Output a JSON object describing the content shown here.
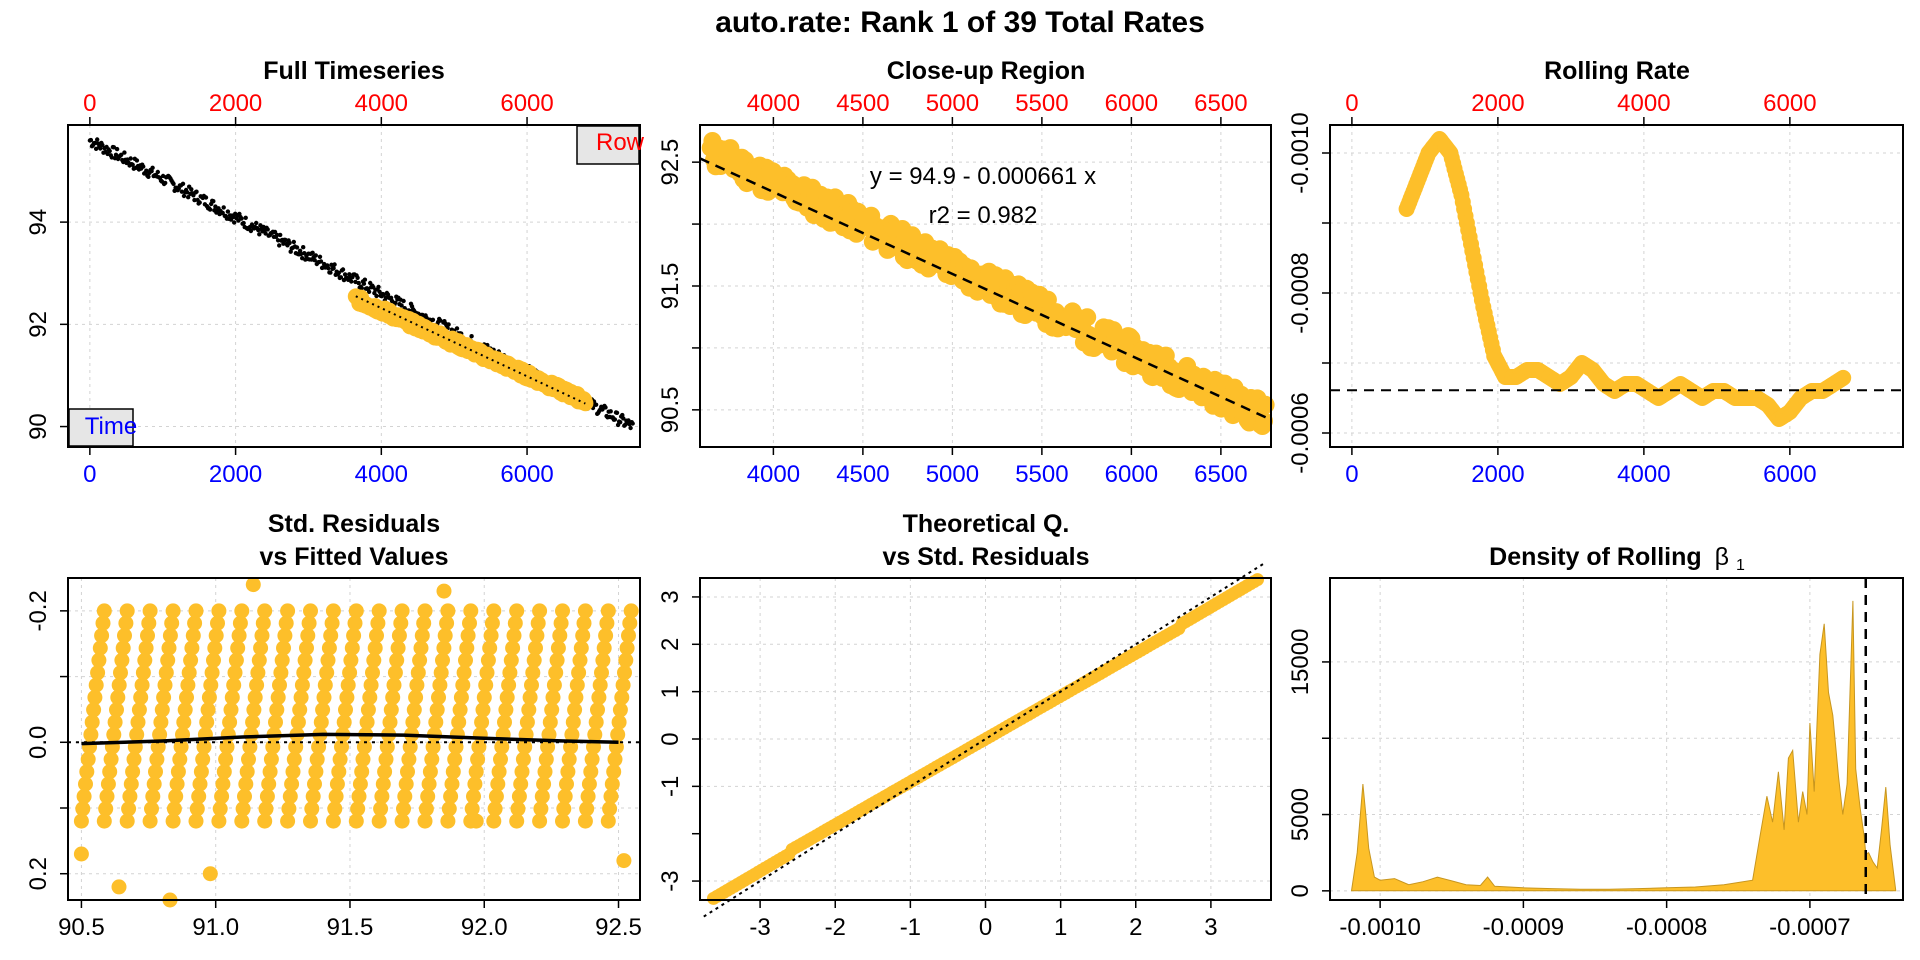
{
  "main_title": "auto.rate: Rank 1 of 39 Total Rates",
  "colors": {
    "data_point": "#FDBF2A",
    "full_series": "#000000",
    "time_axis": "#0000FF",
    "row_axis": "#FF0000",
    "legend_fill": "#E6E6E6",
    "grid": "#D3D3D3"
  },
  "panels": {
    "full": {
      "title": "Full Timeseries",
      "legend_row": "Row",
      "legend_time": "Time",
      "row_ticks": [
        "0",
        "2000",
        "4000",
        "6000"
      ],
      "time_ticks": [
        "0",
        "2000",
        "4000",
        "6000"
      ],
      "y_ticks": [
        "90",
        "92",
        "94"
      ]
    },
    "closeup": {
      "title": "Close-up Region",
      "row_ticks": [
        "4000",
        "4500",
        "5000",
        "5500",
        "6000",
        "6500"
      ],
      "time_ticks": [
        "4000",
        "4500",
        "5000",
        "5500",
        "6000",
        "6500"
      ],
      "y_ticks": [
        "90.5",
        "91.5",
        "92.5"
      ],
      "equation": "y = 94.9 - 0.000661 x",
      "r2": "r2 = 0.982"
    },
    "rolling": {
      "title": "Rolling Rate",
      "row_ticks": [
        "0",
        "2000",
        "4000",
        "6000"
      ],
      "time_ticks": [
        "0",
        "2000",
        "4000",
        "6000"
      ],
      "y_ticks": [
        "-0.0006",
        "-0.0008",
        "-0.0010"
      ]
    },
    "residuals": {
      "title_line1": "Std. Residuals",
      "title_line2": "vs Fitted Values",
      "x_ticks": [
        "90.5",
        "91.0",
        "91.5",
        "92.0",
        "92.5"
      ],
      "y_ticks": [
        "0.2",
        "0.0",
        "-0.2"
      ]
    },
    "qq": {
      "title_line1": "Theoretical Q.",
      "title_line2": "vs Std. Residuals",
      "x_ticks": [
        "-3",
        "-2",
        "-1",
        "0",
        "1",
        "2",
        "3"
      ],
      "y_ticks": [
        "-3",
        "-1",
        "0",
        "1",
        "2",
        "3"
      ]
    },
    "density": {
      "title": "Density of Rolling",
      "title_symbol": "β",
      "title_subscript": "1",
      "x_ticks": [
        "-0.0010",
        "-0.0009",
        "-0.0008",
        "-0.0007"
      ],
      "y_ticks": [
        "0",
        "5000",
        "15000"
      ]
    }
  },
  "chart_data": [
    {
      "type": "scatter",
      "title": "Full Timeseries",
      "x_axis_time": {
        "ticks": [
          0,
          2000,
          4000,
          6000
        ],
        "range": [
          -300,
          7550
        ]
      },
      "x_axis_row": {
        "ticks": [
          0,
          2000,
          4000,
          6000
        ]
      },
      "ylim": [
        89.6,
        95.9
      ],
      "grid": true,
      "series": [
        {
          "role": "full_data",
          "x_start": 0,
          "x_end": 7450,
          "y_start": 95.6,
          "y_end": 90.0,
          "noise": 0.12
        },
        {
          "role": "selected_subset",
          "x_start": 3650,
          "x_end": 6800,
          "y_start": 92.5,
          "y_end": 90.5
        }
      ],
      "fit_line": {
        "x": [
          3650,
          6800
        ],
        "y": [
          92.55,
          90.45
        ],
        "style": "dotted"
      }
    },
    {
      "type": "scatter",
      "title": "Close-up Region",
      "x_axis_time": {
        "ticks": [
          4000,
          4500,
          5000,
          5500,
          6000,
          6500
        ],
        "range": [
          3590,
          6780
        ]
      },
      "ylim": [
        90.2,
        92.8
      ],
      "grid": true,
      "series": [
        {
          "role": "selected_subset",
          "x_start": 3650,
          "x_end": 6750,
          "y_start": 92.58,
          "y_end": 90.45,
          "noise": 0.12
        }
      ],
      "fit_line": {
        "x": [
          3590,
          6780
        ],
        "y": [
          92.53,
          90.42
        ],
        "style": "dashed",
        "intercept": 94.9,
        "slope": -0.000661,
        "r2": 0.982
      }
    },
    {
      "type": "line",
      "title": "Rolling Rate",
      "x_axis_time": {
        "ticks": [
          0,
          2000,
          4000,
          6000
        ],
        "range": [
          -300,
          7550
        ]
      },
      "y_reversed": true,
      "ylim": [
        -0.00058,
        -0.00104
      ],
      "grid": true,
      "series": [
        {
          "x": [
            750,
            900,
            1050,
            1200,
            1350,
            1500,
            1650,
            1800,
            1950,
            2100,
            2250,
            2400,
            2550,
            2700,
            2850,
            3000,
            3150,
            3300,
            3450,
            3600,
            3750,
            3900,
            4050,
            4200,
            4350,
            4500,
            4650,
            4800,
            4950,
            5100,
            5250,
            5400,
            5550,
            5700,
            5850,
            6000,
            6150,
            6300,
            6450,
            6600,
            6750
          ],
          "y": [
            -0.00092,
            -0.00096,
            -0.001,
            -0.00102,
            -0.001,
            -0.00094,
            -0.00086,
            -0.00078,
            -0.00071,
            -0.00068,
            -0.00068,
            -0.00069,
            -0.00069,
            -0.00068,
            -0.00067,
            -0.00068,
            -0.0007,
            -0.00069,
            -0.00067,
            -0.00066,
            -0.00067,
            -0.00067,
            -0.00066,
            -0.00065,
            -0.00066,
            -0.00067,
            -0.00066,
            -0.00065,
            -0.00066,
            -0.00066,
            -0.00065,
            -0.00065,
            -0.00065,
            -0.00064,
            -0.00062,
            -0.00063,
            -0.00065,
            -0.00066,
            -0.00066,
            -0.00067,
            -0.00068
          ]
        }
      ],
      "hline": {
        "y": -0.000661,
        "style": "dashed"
      }
    },
    {
      "type": "scatter",
      "title": "Std. Residuals vs Fitted Values",
      "xlim": [
        90.45,
        92.58
      ],
      "ylim": [
        0.24,
        -0.25
      ],
      "y_reversed": true,
      "x_ticks": [
        90.5,
        91.0,
        91.5,
        92.0,
        92.5
      ],
      "y_ticks": [
        0.2,
        0.0,
        -0.2
      ],
      "grid": true,
      "stripes": {
        "start": 90.5,
        "step": 0.0853,
        "count": 24,
        "y_top": -0.2,
        "y_bottom": 0.12
      },
      "outliers": [
        {
          "x": 90.83,
          "y": 0.24
        },
        {
          "x": 90.64,
          "y": 0.22
        },
        {
          "x": 90.98,
          "y": 0.2
        },
        {
          "x": 91.14,
          "y": -0.24
        },
        {
          "x": 91.85,
          "y": -0.23
        },
        {
          "x": 92.52,
          "y": 0.18
        },
        {
          "x": 90.5,
          "y": 0.17
        },
        {
          "x": 91.97,
          "y": 0.12
        }
      ],
      "smooth_line": {
        "x": [
          90.5,
          90.8,
          91.1,
          91.4,
          91.7,
          92.0,
          92.3,
          92.5
        ],
        "y": [
          0.002,
          -0.002,
          -0.008,
          -0.012,
          -0.011,
          -0.006,
          -0.002,
          0.0
        ]
      },
      "hline": {
        "y": 0.0,
        "style": "dotted"
      }
    },
    {
      "type": "scatter",
      "title": "Theoretical Q. vs Std. Residuals",
      "xlim": [
        -3.8,
        3.8
      ],
      "ylim": [
        -3.4,
        3.4
      ],
      "x_ticks": [
        -3,
        -2,
        -1,
        0,
        1,
        2,
        3
      ],
      "y_ticks": [
        -3,
        -1,
        0,
        1,
        2,
        3
      ],
      "grid": true,
      "series": [
        {
          "role": "quantiles",
          "x_start": -3.62,
          "x_end": 3.62,
          "y_start": -3.28,
          "y_end": 3.28
        }
      ],
      "ref_line": {
        "x": [
          -3.4,
          3.6
        ],
        "y": [
          -3.4,
          3.6
        ],
        "style": "dotted"
      },
      "ref_line_outer": {
        "style": "dashed"
      }
    },
    {
      "type": "area",
      "title": "Density of Rolling β1",
      "xlim": [
        -0.001035,
        -0.000635
      ],
      "ylim": [
        -600,
        20500
      ],
      "x_ticks": [
        -0.001,
        -0.0009,
        -0.0008,
        -0.0007
      ],
      "y_ticks": [
        0,
        5000,
        15000
      ],
      "grid": true,
      "x": [
        -0.00102,
        -0.001016,
        -0.001012,
        -0.00101,
        -0.001008,
        -0.001004,
        -0.001,
        -0.00099,
        -0.00098,
        -0.00097,
        -0.00096,
        -0.00095,
        -0.00094,
        -0.00093,
        -0.000925,
        -0.00092,
        -0.0009,
        -0.00088,
        -0.00086,
        -0.00084,
        -0.00082,
        -0.0008,
        -0.00078,
        -0.00076,
        -0.00074,
        -0.000735,
        -0.00073,
        -0.000726,
        -0.000722,
        -0.000718,
        -0.000715,
        -0.000712,
        -0.000708,
        -0.000705,
        -0.000702,
        -0.0007,
        -0.000697,
        -0.000693,
        -0.00069,
        -0.000687,
        -0.000684,
        -0.00068,
        -0.000677,
        -0.000674,
        -0.00067,
        -0.000668,
        -0.000665,
        -0.000662,
        -0.000661,
        -0.000659,
        -0.000656,
        -0.000653,
        -0.00065,
        -0.000647,
        -0.000644,
        -0.00064
      ],
      "y": [
        0,
        2500,
        7000,
        5000,
        2800,
        900,
        700,
        800,
        400,
        600,
        900,
        650,
        400,
        350,
        900,
        300,
        200,
        150,
        100,
        100,
        150,
        200,
        250,
        400,
        700,
        3500,
        6200,
        4500,
        7800,
        4000,
        8700,
        9200,
        4500,
        6500,
        5000,
        11000,
        6500,
        15500,
        17500,
        13000,
        11500,
        7500,
        5000,
        7000,
        19000,
        8000,
        5500,
        3500,
        2400,
        2500,
        1900,
        1500,
        4000,
        6800,
        3000,
        0
      ],
      "vline": {
        "x": -0.000661,
        "style": "dashed"
      }
    }
  ]
}
